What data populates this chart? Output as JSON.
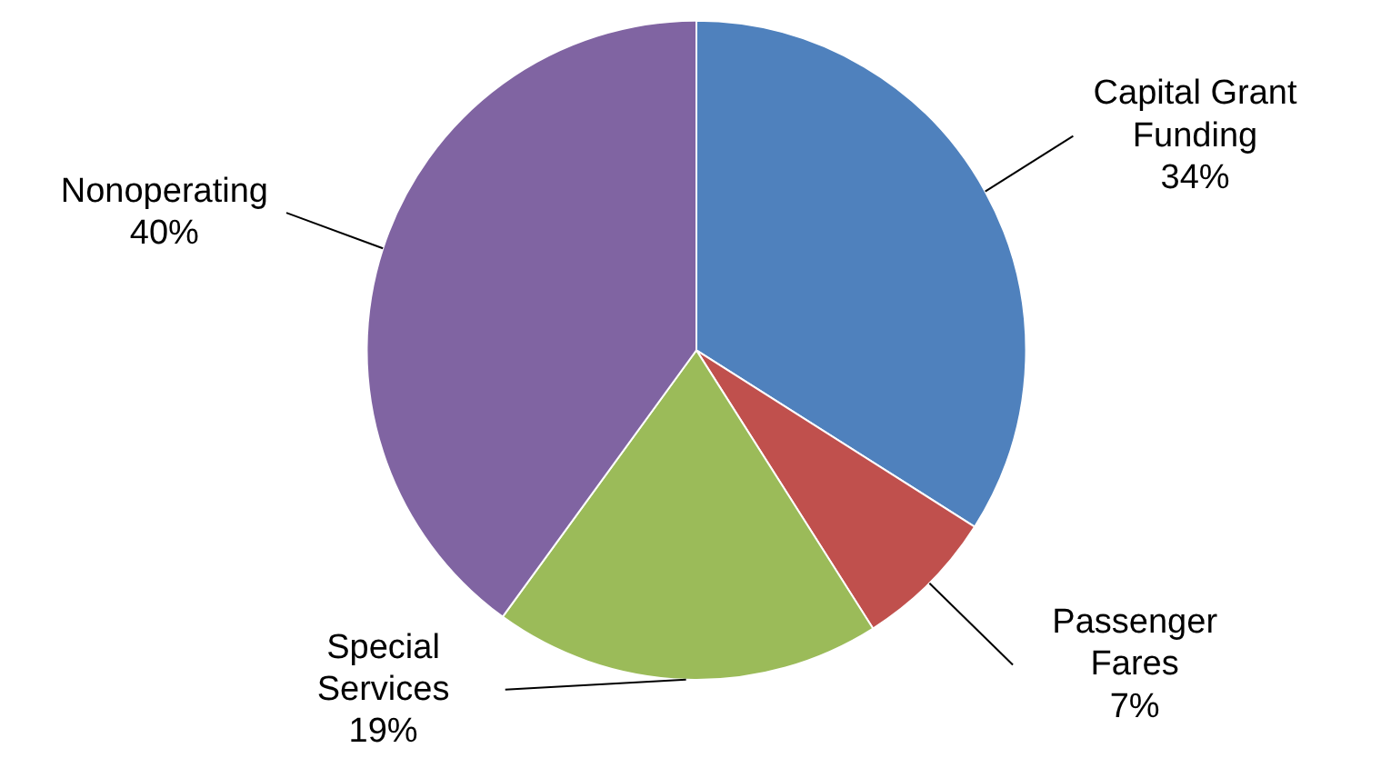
{
  "chart_data": {
    "type": "pie",
    "categories": [
      "Capital Grant Funding",
      "Passenger Fares",
      "Special Services",
      "Nonoperating"
    ],
    "values": [
      34,
      7,
      19,
      40
    ],
    "colors": [
      "#4f81bd",
      "#c0504d",
      "#9bbb59",
      "#8064a2"
    ],
    "value_labels": [
      "34%",
      "7%",
      "19%",
      "40%"
    ]
  }
}
